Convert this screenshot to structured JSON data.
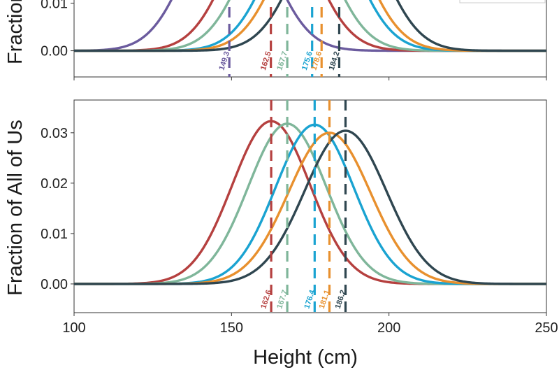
{
  "chart_data": [
    {
      "type": "line",
      "panel": "top",
      "ylabel": "Fraction",
      "xlim": [
        100,
        250
      ],
      "ylim": [
        -0.0055,
        0.018
      ],
      "ytick_labels": [
        "0.00",
        "0.01"
      ],
      "yticks": [
        0.0,
        0.01
      ],
      "series": [
        {
          "name": "149.3",
          "mean": 149.3,
          "sd": 12.4,
          "color": "#6b5b9e"
        },
        {
          "name": "162.5",
          "mean": 162.5,
          "sd": 12.4,
          "color": "#b5403f"
        },
        {
          "name": "167.7",
          "mean": 167.7,
          "sd": 12.4,
          "color": "#7fb69a"
        },
        {
          "name": "175.6",
          "mean": 175.6,
          "sd": 12.4,
          "color": "#1aa3d1"
        },
        {
          "name": "178.6",
          "mean": 178.6,
          "sd": 12.4,
          "color": "#e8902e"
        },
        {
          "name": "184.2",
          "mean": 184.2,
          "sd": 12.4,
          "color": "#2f4650"
        }
      ]
    },
    {
      "type": "line",
      "panel": "bottom",
      "ylabel": "Fraction of All of Us",
      "xlabel": "Height (cm)",
      "xlim": [
        100,
        250
      ],
      "ylim": [
        -0.0057,
        0.0365
      ],
      "xticks": [
        100,
        150,
        200,
        250
      ],
      "xtick_labels": [
        "100",
        "150",
        "200",
        "250"
      ],
      "yticks": [
        0.0,
        0.01,
        0.02,
        0.03
      ],
      "ytick_labels": [
        "0.00",
        "0.01",
        "0.02",
        "0.03"
      ],
      "series": [
        {
          "name": "162.6",
          "mean": 162.6,
          "sd": 12.4,
          "peak": 0.0323,
          "color": "#b5403f"
        },
        {
          "name": "167.7",
          "mean": 167.7,
          "sd": 12.4,
          "peak": 0.0318,
          "color": "#7fb69a"
        },
        {
          "name": "176.4",
          "mean": 176.4,
          "sd": 12.4,
          "peak": 0.0316,
          "color": "#1aa3d1"
        },
        {
          "name": "181.1",
          "mean": 181.1,
          "sd": 13.0,
          "peak": 0.03,
          "color": "#e8902e"
        },
        {
          "name": "186.2",
          "mean": 186.2,
          "sd": 13.0,
          "peak": 0.0304,
          "color": "#2f4650"
        }
      ]
    }
  ]
}
